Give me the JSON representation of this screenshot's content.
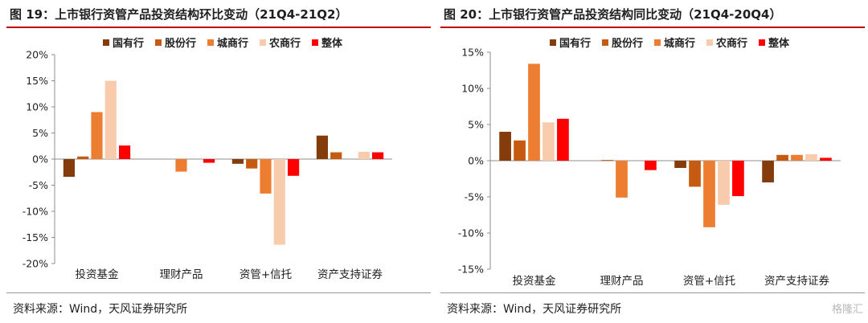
{
  "watermark": "格隆汇",
  "charts": [
    {
      "title": "图 19：上市银行资管产品投资结构环比变动（21Q4-21Q2）",
      "source": "资料来源：Wind，天风证券研究所"
    },
    {
      "title": "图 20：上市银行资管产品投资结构同比变动（21Q4-20Q4）",
      "source": "资料来源：Wind，天风证券研究所"
    }
  ],
  "chart_data": [
    {
      "type": "bar",
      "title": "图 19：上市银行资管产品投资结构环比变动（21Q4-21Q2）",
      "categories": [
        "投资基金",
        "理财产品",
        "资管+信托",
        "资产支持证券"
      ],
      "series": [
        {
          "name": "国有行",
          "color": "#843c0c",
          "values": [
            -3.4,
            0,
            -0.9,
            4.5
          ]
        },
        {
          "name": "股份行",
          "color": "#c55a11",
          "values": [
            0.5,
            0,
            -1.8,
            1.3
          ]
        },
        {
          "name": "城商行",
          "color": "#ed7d31",
          "values": [
            9.0,
            -2.4,
            -6.6,
            0
          ]
        },
        {
          "name": "农商行",
          "color": "#f8cbad",
          "values": [
            15.0,
            0,
            -16.4,
            1.4
          ]
        },
        {
          "name": "整体",
          "color": "#ff0000",
          "values": [
            2.6,
            -0.7,
            -3.2,
            1.3
          ]
        }
      ],
      "ylim": [
        -20,
        20
      ],
      "yticks": [
        -20,
        -15,
        -10,
        -5,
        0,
        5,
        10,
        15,
        20
      ],
      "ytick_labels": [
        "-20%",
        "-15%",
        "-10%",
        "-5%",
        "0%",
        "5%",
        "10%",
        "15%",
        "20%"
      ],
      "legend_position": "top",
      "grid": false
    },
    {
      "type": "bar",
      "title": "图 20：上市银行资管产品投资结构同比变动（21Q4-20Q4）",
      "categories": [
        "投资基金",
        "理财产品",
        "资管+信托",
        "资产支持证券"
      ],
      "series": [
        {
          "name": "国有行",
          "color": "#843c0c",
          "values": [
            4.0,
            0,
            -1.0,
            -3.0
          ]
        },
        {
          "name": "股份行",
          "color": "#c55a11",
          "values": [
            2.8,
            0.1,
            -3.6,
            0.8
          ]
        },
        {
          "name": "城商行",
          "color": "#ed7d31",
          "values": [
            13.4,
            -5.1,
            -9.2,
            0.8
          ]
        },
        {
          "name": "农商行",
          "color": "#f8cbad",
          "values": [
            5.3,
            0,
            -6.1,
            0.9
          ]
        },
        {
          "name": "整体",
          "color": "#ff0000",
          "values": [
            5.8,
            -1.3,
            -4.9,
            0.4
          ]
        }
      ],
      "ylim": [
        -15,
        15
      ],
      "yticks": [
        -15,
        -10,
        -5,
        0,
        5,
        10,
        15
      ],
      "ytick_labels": [
        "-15%",
        "-10%",
        "-5%",
        "0%",
        "5%",
        "10%",
        "15%"
      ],
      "legend_position": "top",
      "grid": false
    }
  ]
}
